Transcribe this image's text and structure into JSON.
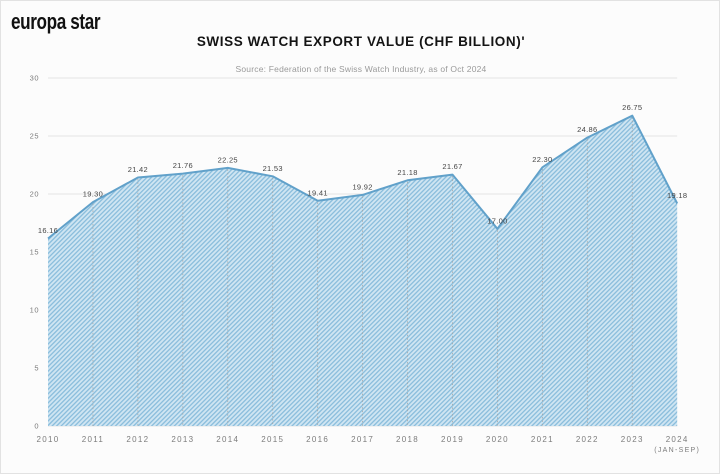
{
  "header": {
    "logo": "europa star"
  },
  "chart_data": {
    "type": "area",
    "title": "SWISS WATCH EXPORT VALUE (CHF BILLION)'",
    "subtitle": "Source: Federation of the Swiss Watch Industry, as of Oct 2024",
    "categories": [
      "2010",
      "2011",
      "2012",
      "2013",
      "2014",
      "2015",
      "2016",
      "2017",
      "2018",
      "2019",
      "2020",
      "2021",
      "2022",
      "2023",
      "2024\n(JAN-SEP)"
    ],
    "values": [
      16.16,
      19.3,
      21.42,
      21.76,
      22.25,
      21.53,
      19.41,
      19.92,
      21.18,
      21.67,
      17.0,
      22.3,
      24.86,
      26.75,
      19.18
    ],
    "value_labels": [
      "16.16",
      "19.30",
      "21.42",
      "21.76",
      "22.25",
      "21.53",
      "19.41",
      "19.92",
      "21.18",
      "21.67",
      "17.00",
      "22.30",
      "24.86",
      "26.75",
      "19.18"
    ],
    "y_ticks": [
      "0",
      "5",
      "10",
      "15",
      "20",
      "25",
      "30"
    ],
    "ylim": [
      0,
      30
    ],
    "xlabel": "",
    "ylabel": "",
    "grid": "horizontal-gridlines-plus-droplines",
    "legend": "none",
    "area_texture": "diagonal-hatch",
    "colors": {
      "background": "#fcfcfc",
      "area_fill_light": "#cfe5f2",
      "area_hatch_line": "#8abddc",
      "line_stroke": "#61a1ca",
      "gridline": "#e4e4e4",
      "dropline": "#a6a6a6",
      "title_text": "#141414",
      "subtitle_text": "#9a9a9a",
      "axis_text": "#7c7c7c",
      "value_label_text": "#454545"
    }
  }
}
